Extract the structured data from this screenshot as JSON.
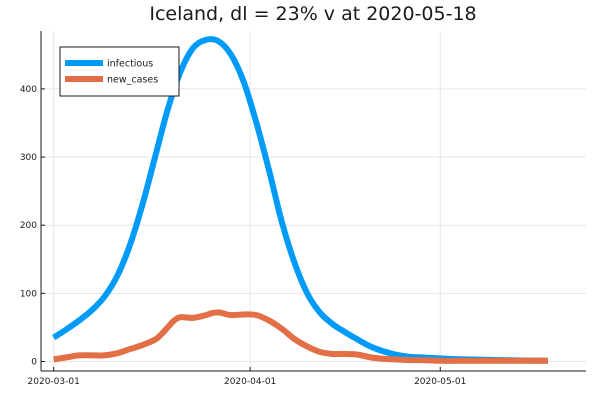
{
  "chart_data": {
    "type": "line",
    "title": "Iceland,  dl = 23% v at 2020-05-18",
    "xlabel": "",
    "ylabel": "",
    "x_axis_type": "date",
    "xlim": [
      "2020-02-28",
      "2020-05-24"
    ],
    "ylim": [
      -14,
      485
    ],
    "x_ticks": [
      "2020-03-01",
      "2020-04-01",
      "2020-05-01"
    ],
    "y_ticks": [
      0,
      100,
      200,
      300,
      400
    ],
    "grid": true,
    "legend_position": "top-left",
    "series": [
      {
        "name": "infectious",
        "color": "#009af9",
        "points": [
          [
            "2020-03-01",
            35
          ],
          [
            "2020-03-03",
            47
          ],
          [
            "2020-03-05",
            60
          ],
          [
            "2020-03-07",
            75
          ],
          [
            "2020-03-09",
            95
          ],
          [
            "2020-03-11",
            125
          ],
          [
            "2020-03-13",
            170
          ],
          [
            "2020-03-15",
            230
          ],
          [
            "2020-03-17",
            300
          ],
          [
            "2020-03-19",
            370
          ],
          [
            "2020-03-21",
            425
          ],
          [
            "2020-03-23",
            460
          ],
          [
            "2020-03-25",
            472
          ],
          [
            "2020-03-27",
            470
          ],
          [
            "2020-03-29",
            450
          ],
          [
            "2020-03-31",
            410
          ],
          [
            "2020-04-02",
            350
          ],
          [
            "2020-04-04",
            280
          ],
          [
            "2020-04-06",
            205
          ],
          [
            "2020-04-08",
            145
          ],
          [
            "2020-04-10",
            100
          ],
          [
            "2020-04-12",
            72
          ],
          [
            "2020-04-14",
            55
          ],
          [
            "2020-04-16",
            43
          ],
          [
            "2020-04-18",
            32
          ],
          [
            "2020-04-20",
            22
          ],
          [
            "2020-04-22",
            15
          ],
          [
            "2020-04-24",
            10
          ],
          [
            "2020-04-26",
            7
          ],
          [
            "2020-04-28",
            6
          ],
          [
            "2020-04-30",
            5
          ],
          [
            "2020-05-02",
            4
          ],
          [
            "2020-05-05",
            3
          ],
          [
            "2020-05-08",
            2.5
          ],
          [
            "2020-05-11",
            2
          ],
          [
            "2020-05-14",
            1.5
          ],
          [
            "2020-05-18",
            1
          ]
        ]
      },
      {
        "name": "new_cases",
        "color": "#e26f46",
        "points": [
          [
            "2020-03-01",
            3
          ],
          [
            "2020-03-03",
            6
          ],
          [
            "2020-03-05",
            9
          ],
          [
            "2020-03-07",
            9
          ],
          [
            "2020-03-09",
            9
          ],
          [
            "2020-03-11",
            12
          ],
          [
            "2020-03-13",
            18
          ],
          [
            "2020-03-15",
            24
          ],
          [
            "2020-03-17",
            32
          ],
          [
            "2020-03-18",
            40
          ],
          [
            "2020-03-19",
            50
          ],
          [
            "2020-03-20",
            60
          ],
          [
            "2020-03-21",
            65
          ],
          [
            "2020-03-23",
            64
          ],
          [
            "2020-03-25",
            68
          ],
          [
            "2020-03-26",
            71
          ],
          [
            "2020-03-27",
            72
          ],
          [
            "2020-03-28",
            70
          ],
          [
            "2020-03-29",
            68
          ],
          [
            "2020-03-31",
            69
          ],
          [
            "2020-04-02",
            68
          ],
          [
            "2020-04-04",
            60
          ],
          [
            "2020-04-06",
            48
          ],
          [
            "2020-04-08",
            33
          ],
          [
            "2020-04-10",
            22
          ],
          [
            "2020-04-12",
            14
          ],
          [
            "2020-04-14",
            11
          ],
          [
            "2020-04-16",
            11
          ],
          [
            "2020-04-18",
            10
          ],
          [
            "2020-04-20",
            6
          ],
          [
            "2020-04-22",
            4
          ],
          [
            "2020-04-24",
            3
          ],
          [
            "2020-04-26",
            2
          ],
          [
            "2020-04-28",
            2
          ],
          [
            "2020-05-01",
            1
          ],
          [
            "2020-05-05",
            1
          ],
          [
            "2020-05-10",
            1
          ],
          [
            "2020-05-14",
            1
          ],
          [
            "2020-05-18",
            1
          ]
        ]
      }
    ]
  }
}
